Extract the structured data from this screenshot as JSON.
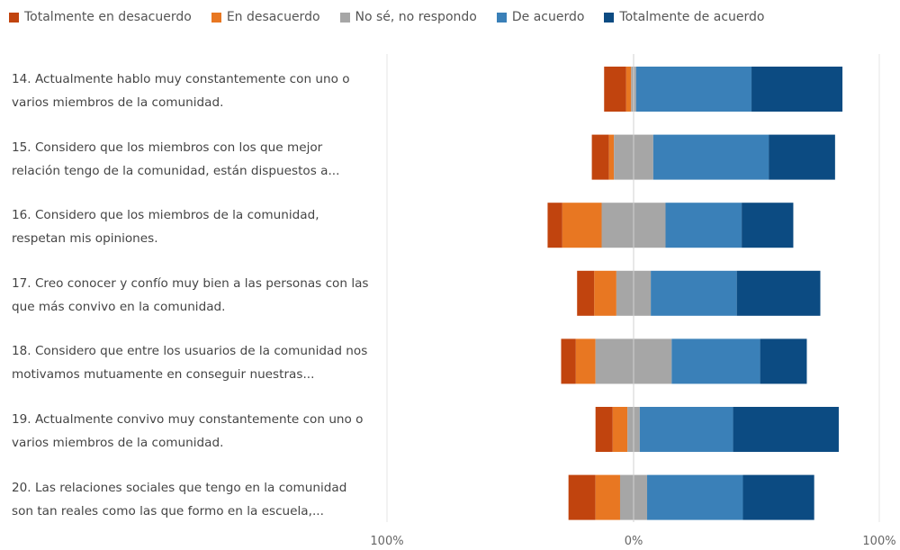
{
  "chart_data": {
    "type": "bar",
    "stacked": "diverging",
    "legend_position": "top",
    "colors": [
      "#c1440e",
      "#e87722",
      "#a6a6a6",
      "#3a80b8",
      "#0c4b82"
    ],
    "series": [
      {
        "name": "Totalmente en desacuerdo",
        "values": [
          9,
          7,
          6,
          7,
          6,
          7,
          11
        ]
      },
      {
        "name": "En desacuerdo",
        "values": [
          2,
          2,
          16,
          9,
          8,
          6,
          10
        ]
      },
      {
        "name": "No sé, no respondo",
        "values": [
          2,
          16,
          26,
          14,
          31,
          5,
          11
        ]
      },
      {
        "name": "De acuerdo",
        "values": [
          47,
          47,
          31,
          35,
          36,
          38,
          39
        ]
      },
      {
        "name": "Totalmente de acuerdo",
        "values": [
          37,
          27,
          21,
          34,
          19,
          43,
          29
        ]
      }
    ],
    "categories": [
      "14. Actualmente hablo muy constantemente con uno o varios miembros de la comunidad.",
      "15. Considero que los miembros con los que mejor relación tengo de la comunidad, están dispuestos a...",
      "16. Considero que los miembros de la comunidad, respetan mis opiniones.",
      "17. Creo conocer y confío muy bien a las personas con las que más convivo en la comunidad.",
      "18. Considero que entre los usuarios de la comunidad nos motivamos mutuamente en conseguir nuestras...",
      "19. Actualmente convivo muy constantemente con uno o varios miembros de la comunidad.",
      "20. Las relaciones sociales que tengo en la comunidad son tan reales como las que formo en la escuela,..."
    ],
    "xlim": [
      -100,
      100
    ],
    "x_ticks": [
      "100%",
      "0%",
      "100%"
    ],
    "grid": true
  }
}
